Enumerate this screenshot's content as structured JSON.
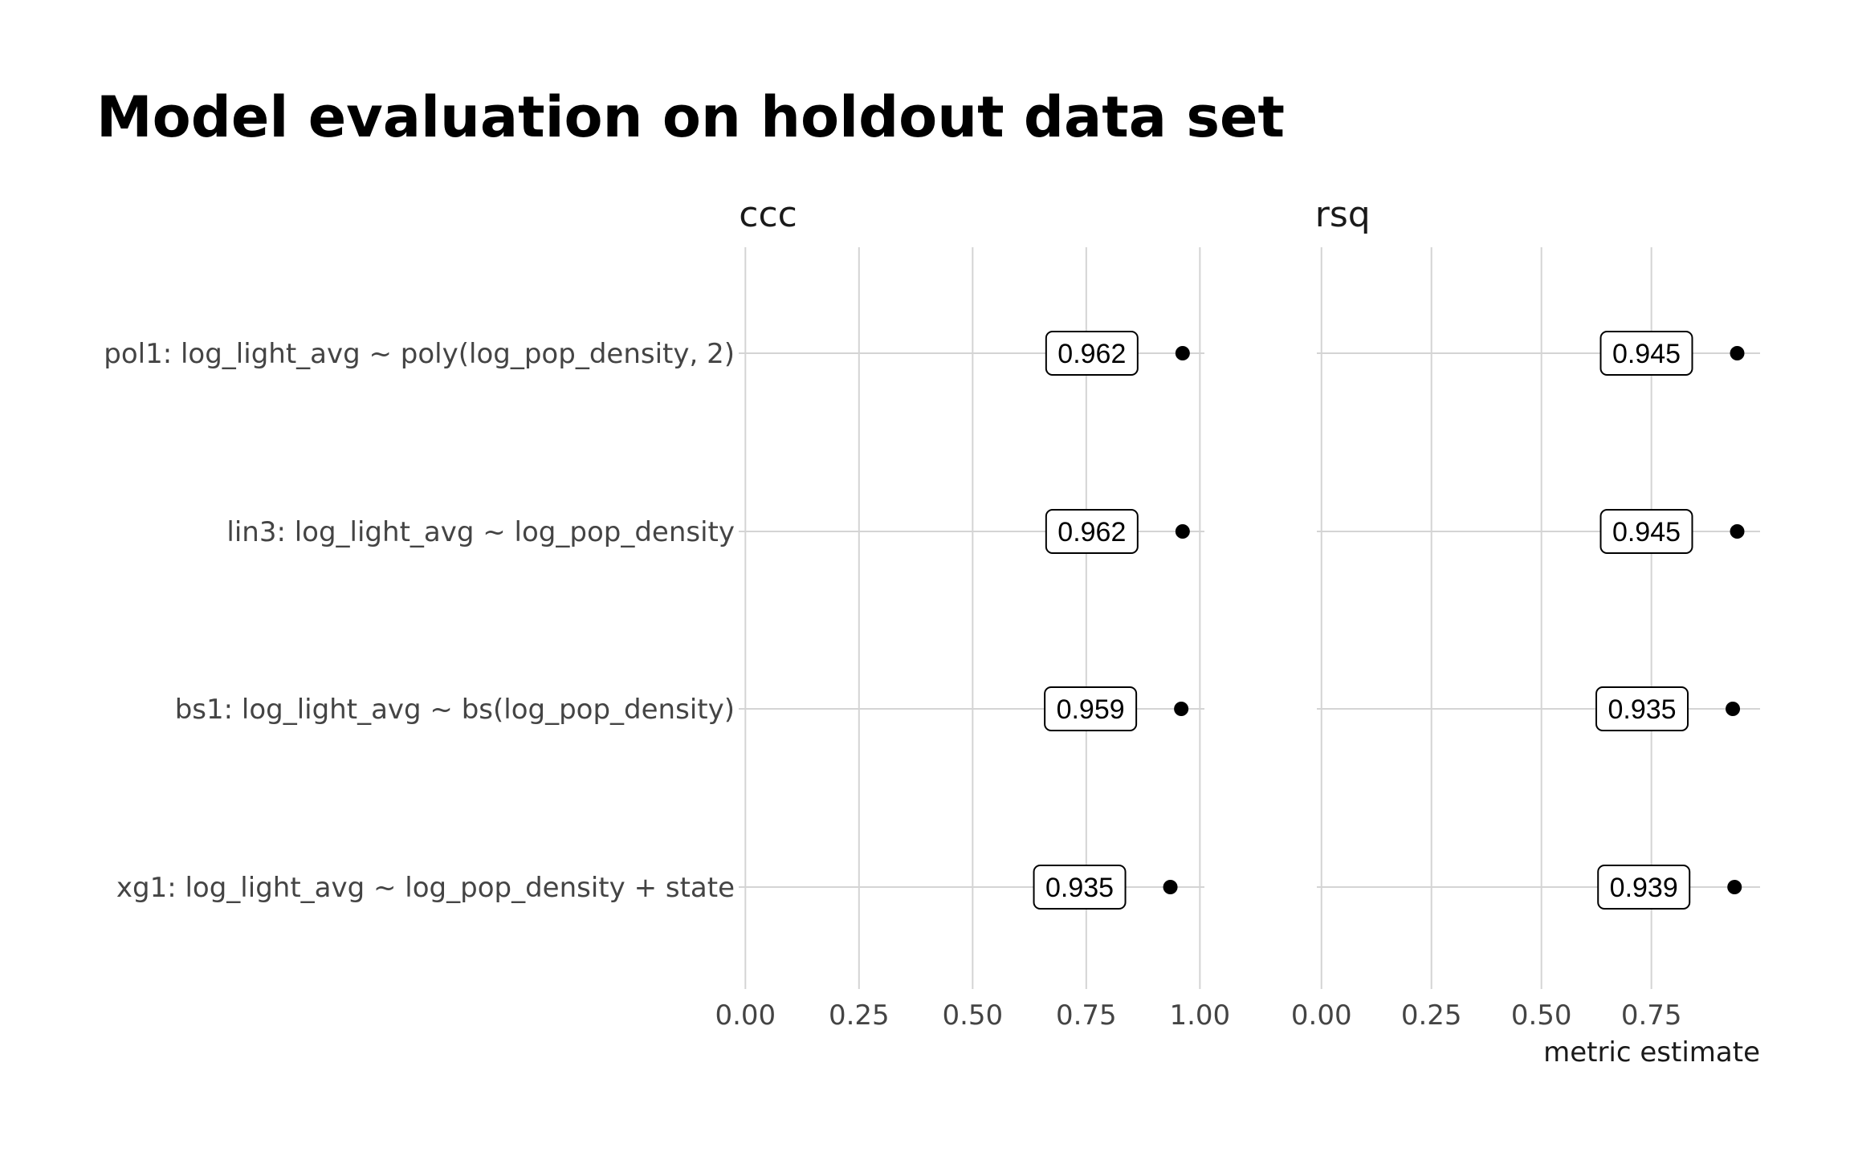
{
  "chart_data": {
    "type": "scatter",
    "title": "Model evaluation on holdout data set",
    "xlabel": "metric estimate",
    "ylabel": "",
    "categories": [
      "pol1: log_light_avg ~ poly(log_pop_density, 2)",
      "lin3: log_light_avg ~ log_pop_density",
      "bs1: log_light_avg ~ bs(log_pop_density)",
      "xg1: log_light_avg ~ log_pop_density + state"
    ],
    "facets": [
      {
        "name": "ccc",
        "values": [
          0.962,
          0.962,
          0.959,
          0.935
        ],
        "labels": [
          "0.962",
          "0.962",
          "0.959",
          "0.935"
        ],
        "xticks": [
          0,
          0.25,
          0.5,
          0.75,
          1
        ],
        "xtick_labels": [
          "0.00",
          "0.25",
          "0.50",
          "0.75",
          "1.00"
        ],
        "xlim": [
          -0.05,
          1.01
        ]
      },
      {
        "name": "rsq",
        "values": [
          0.945,
          0.945,
          0.935,
          0.939
        ],
        "labels": [
          "0.945",
          "0.945",
          "0.935",
          "0.939"
        ],
        "xticks": [
          0,
          0.25,
          0.5,
          0.75
        ],
        "xtick_labels": [
          "0.00",
          "0.25",
          "0.50",
          "0.75"
        ],
        "xlim": [
          -0.047,
          0.997
        ]
      }
    ],
    "grid": true,
    "legend": "none"
  }
}
